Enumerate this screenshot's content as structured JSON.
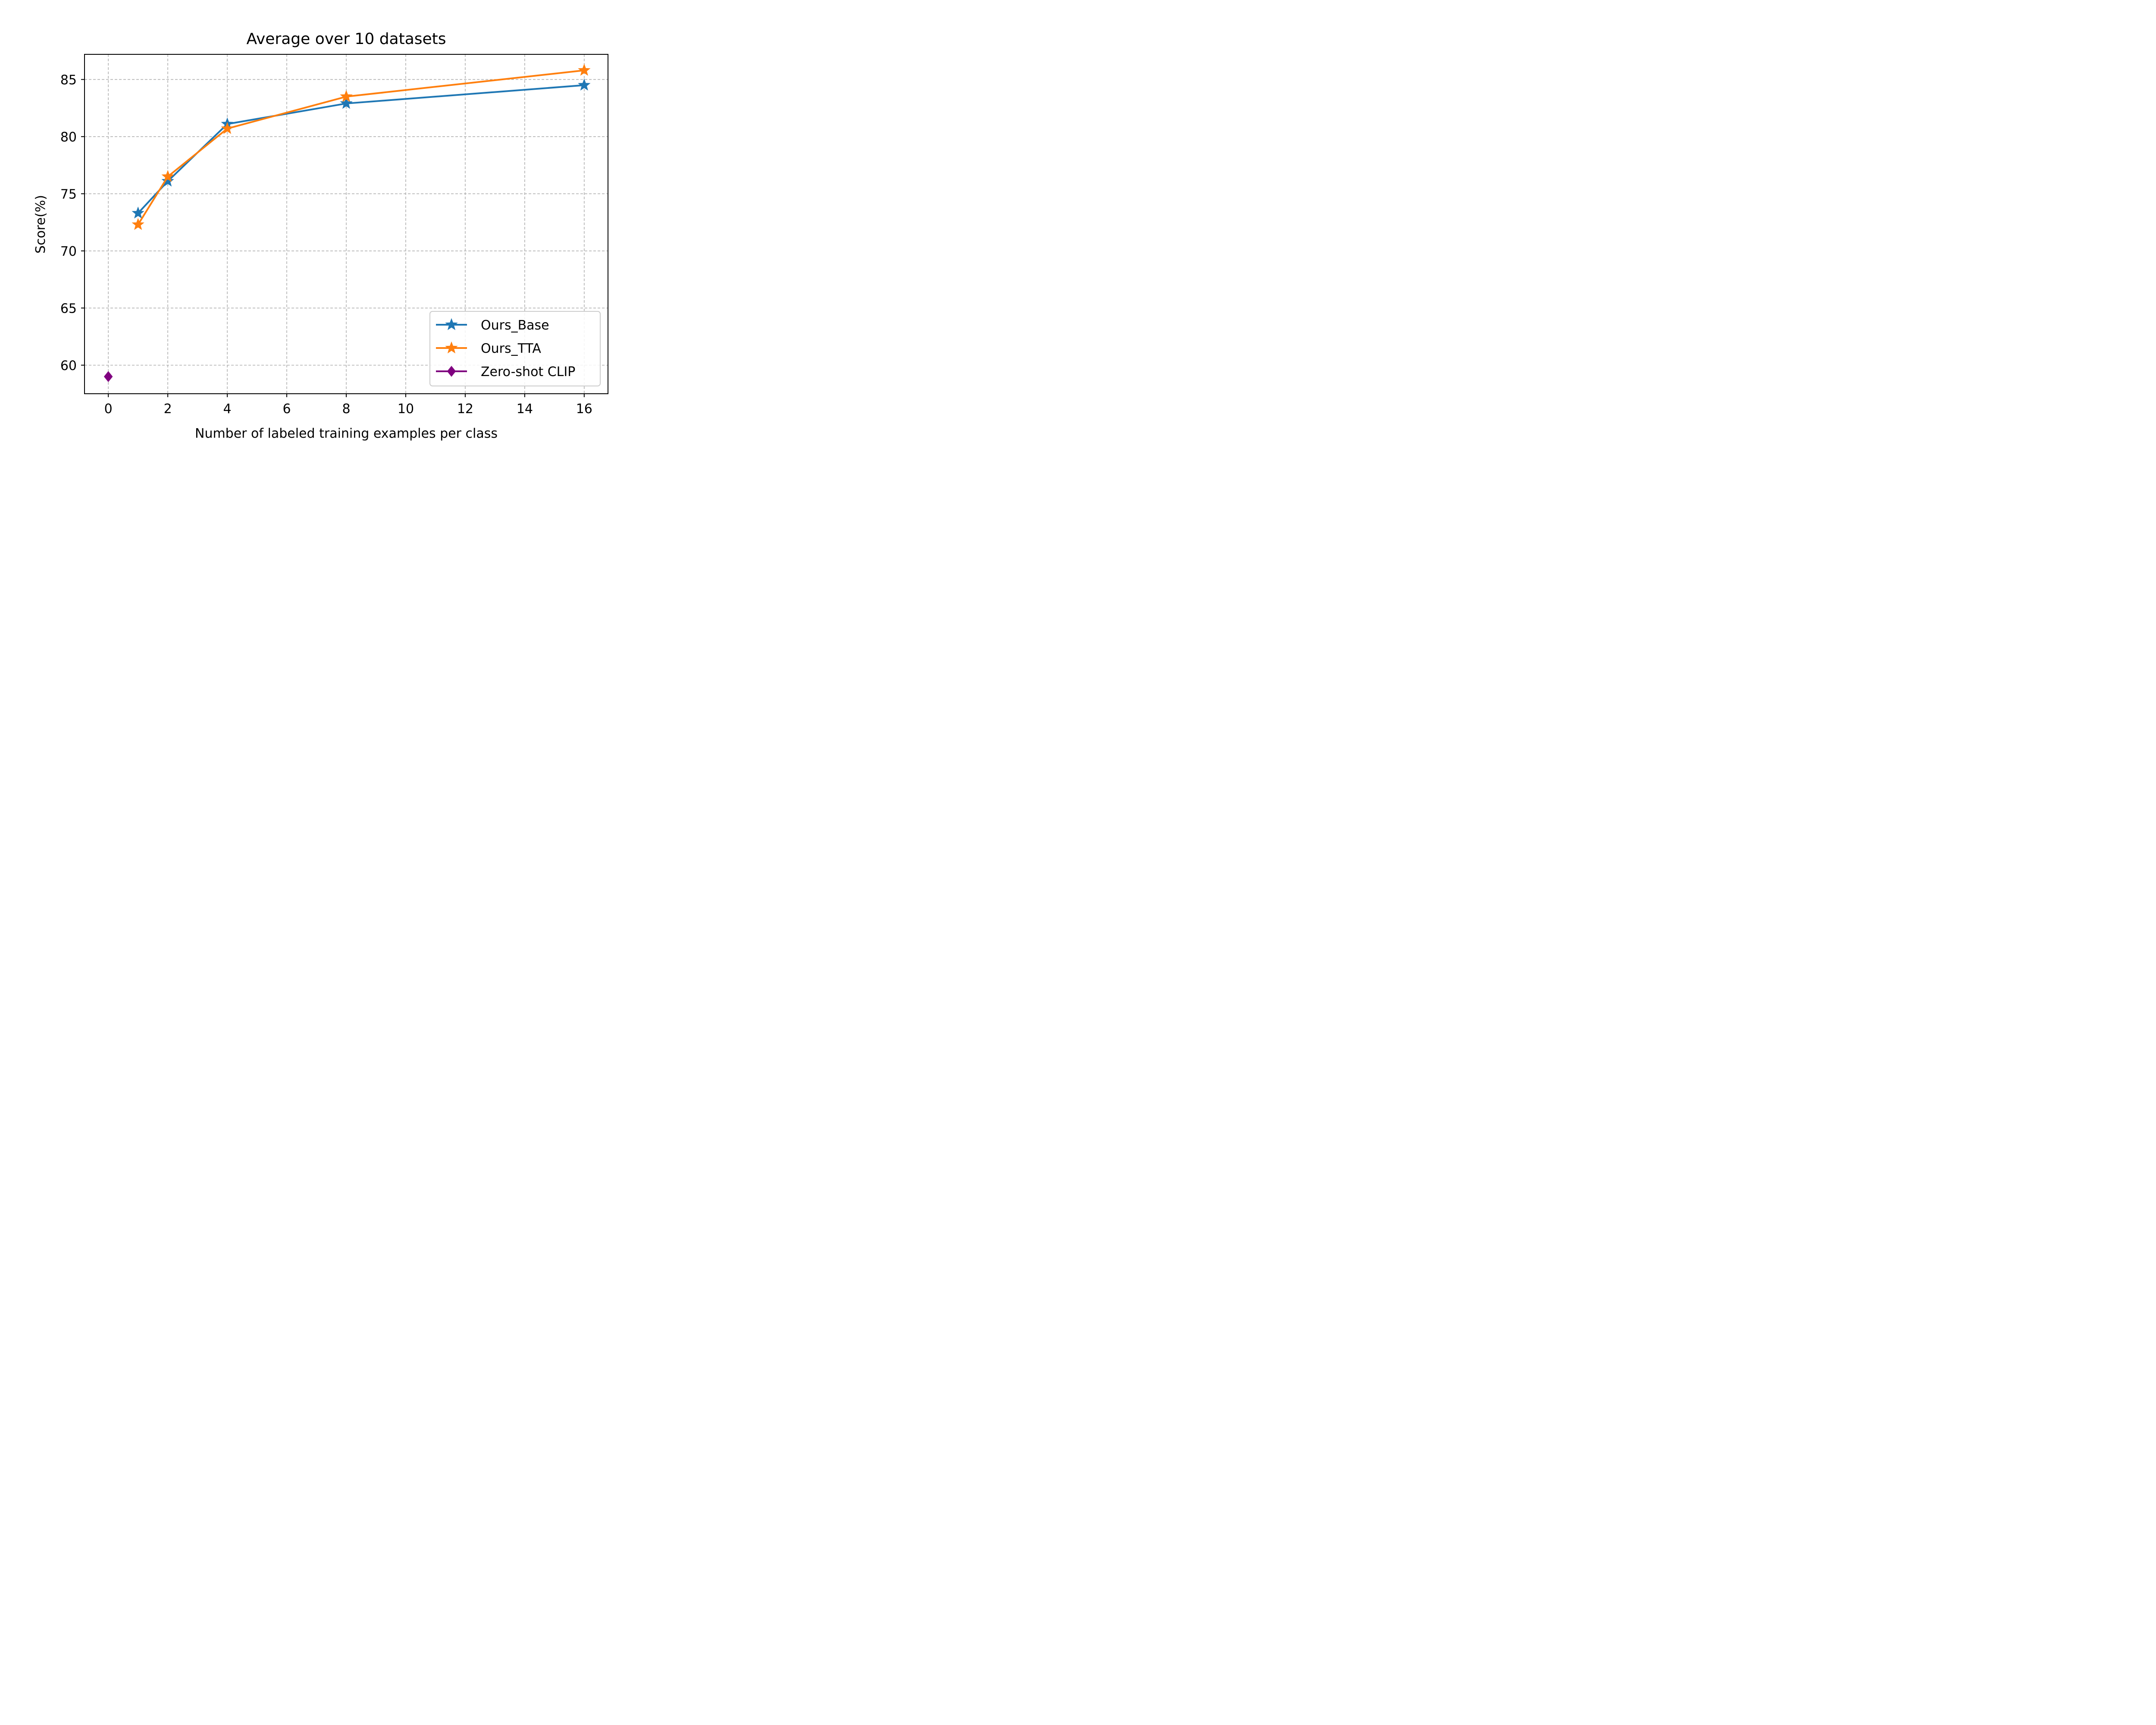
{
  "chart_data": {
    "type": "line",
    "title": "Average over 10 datasets",
    "xlabel": "Number of labeled training examples per class",
    "ylabel": "Score(%)",
    "xlim": [
      -0.8,
      16.8
    ],
    "ylim": [
      57.5,
      87.2
    ],
    "xticks": [
      0,
      2,
      4,
      6,
      8,
      10,
      12,
      14,
      16
    ],
    "yticks": [
      60,
      65,
      70,
      75,
      80,
      85
    ],
    "grid": true,
    "legend_position": "lower-right",
    "series": [
      {
        "name": "Ours_Base",
        "color": "#1f77b4",
        "marker": "star",
        "line": true,
        "x": [
          1,
          2,
          4,
          8,
          16
        ],
        "y": [
          73.3,
          76.1,
          81.1,
          82.9,
          84.5
        ]
      },
      {
        "name": "Ours_TTA",
        "color": "#ff7f0e",
        "marker": "star",
        "line": true,
        "x": [
          1,
          2,
          4,
          8,
          16
        ],
        "y": [
          72.3,
          76.5,
          80.7,
          83.5,
          85.8
        ]
      },
      {
        "name": "Zero-shot CLIP",
        "color": "#800080",
        "marker": "diamond",
        "line": true,
        "x": [
          0
        ],
        "y": [
          59.0
        ]
      }
    ]
  }
}
